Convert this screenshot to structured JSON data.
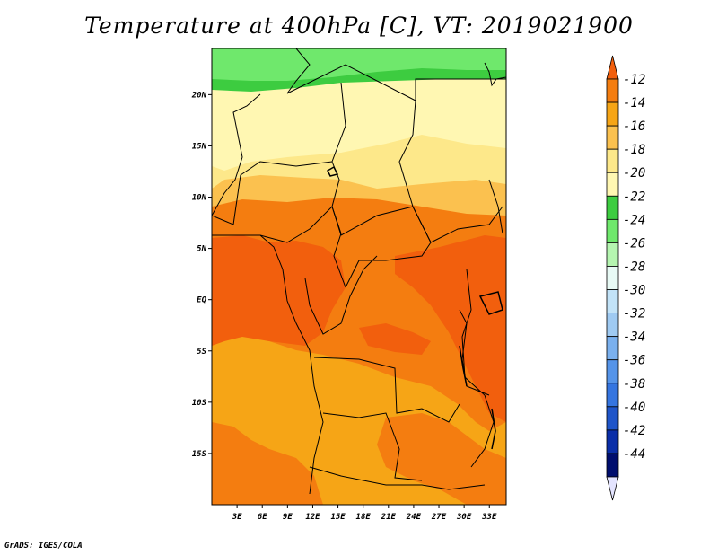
{
  "title": "Temperature at 400hPa [C], VT: 2019021900",
  "credit": "GrADS: IGES/COLA",
  "map": {
    "lon_range": [
      0,
      35
    ],
    "lat_range": [
      -20,
      24.5
    ],
    "lon_ticks": [
      "3E",
      "6E",
      "9E",
      "12E",
      "15E",
      "18E",
      "21E",
      "24E",
      "27E",
      "30E",
      "33E"
    ],
    "lat_ticks": [
      "20N",
      "15N",
      "10N",
      "5N",
      "EQ",
      "5S",
      "10S",
      "15S"
    ],
    "colors": {
      "lt_green": "#6fe86c",
      "green": "#3dcc40",
      "pale_yellow": "#fff7b2",
      "yellow": "#fde88a",
      "lt_orange": "#fbc14f",
      "orange": "#f6a516",
      "dk_orange": "#f47d10",
      "red_orange": "#f25f0d"
    }
  },
  "colorbar": {
    "labels": [
      "-12",
      "-14",
      "-16",
      "-18",
      "-20",
      "-22",
      "-24",
      "-26",
      "-28",
      "-30",
      "-32",
      "-34",
      "-36",
      "-38",
      "-40",
      "-42",
      "-44"
    ],
    "colors": [
      "#f25f0d",
      "#f47d10",
      "#f6a516",
      "#fbc14f",
      "#fde88a",
      "#fff7b2",
      "#3dcc40",
      "#6fe86c",
      "#b5f5b0",
      "#e8faf5",
      "#c2e3f8",
      "#9fcaf2",
      "#7ab0ee",
      "#5594e9",
      "#3575e0",
      "#1f55c9",
      "#0a2ea8",
      "#000e6e",
      "#e4e4ff"
    ]
  }
}
